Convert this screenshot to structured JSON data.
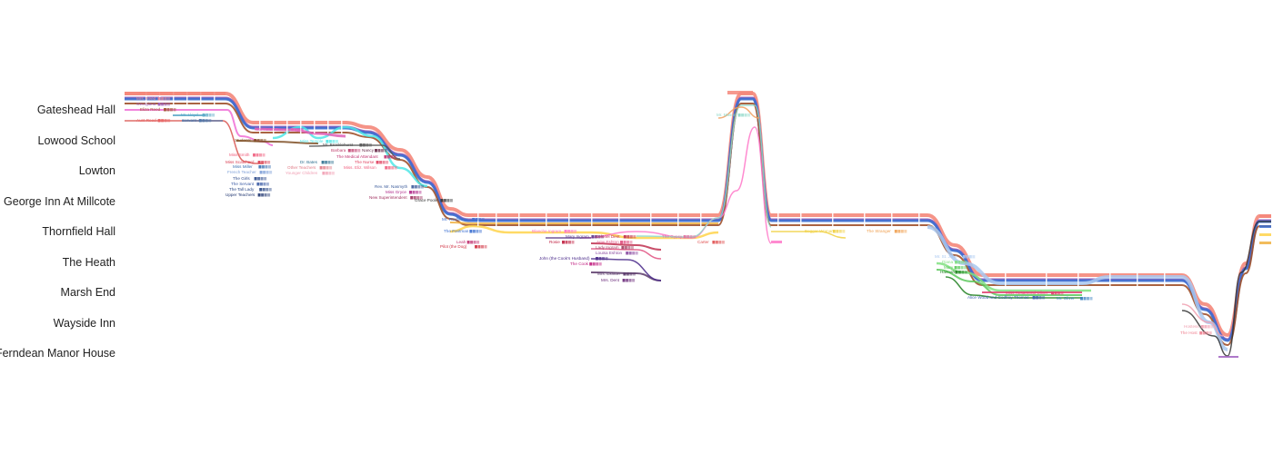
{
  "chart_data": {
    "type": "storyline",
    "locations": [
      "Gateshead Hall",
      "Lowood School",
      "Lowton",
      "George Inn At Millcote",
      "Thornfield Hall",
      "The Heath",
      "Marsh End",
      "Wayside Inn",
      "Ferndean Manor House"
    ],
    "characters": [
      {
        "name": "Jane Eyre",
        "color": "#f4877a"
      },
      {
        "name": "Mrs. Reed",
        "color": "#e8879c"
      },
      {
        "name": "Georgiana Reed",
        "color": "#9b59b6"
      },
      {
        "name": "Eliza Reed",
        "color": "#a0522d"
      },
      {
        "name": "John Reed",
        "color": "#f06fd6"
      },
      {
        "name": "Bessie Lee",
        "color": "#d9534f"
      },
      {
        "name": "Mr. Lloyd",
        "color": "#5aa9c8"
      },
      {
        "name": "Servant",
        "color": "#4a74a8"
      },
      {
        "name": "Abbot",
        "color": "#7a93c9"
      },
      {
        "name": "Aunt Reed",
        "color": "#e85d5d"
      },
      {
        "name": "Helen Burns",
        "color": "#e060b8"
      },
      {
        "name": "Miss Temple",
        "color": "#4fe6e6"
      },
      {
        "name": "Mr. Brocklehurst",
        "color": "#555555"
      },
      {
        "name": "Students",
        "color": "#7f4f24"
      },
      {
        "name": "Miss Scatcherd",
        "color": "#d93b4f"
      },
      {
        "name": "Miss Miller",
        "color": "#3a6fb0"
      },
      {
        "name": "French Teacher",
        "color": "#7fa0d8"
      },
      {
        "name": "The Girls",
        "color": "#2c4a8a"
      },
      {
        "name": "The Servant",
        "color": "#3b5ba5"
      },
      {
        "name": "The Tall Lady",
        "color": "#284684"
      },
      {
        "name": "Upper Teachers",
        "color": "#1f3570"
      },
      {
        "name": "Dr. Bates",
        "color": "#2b6f8f"
      },
      {
        "name": "Other Teachers",
        "color": "#e07a86"
      },
      {
        "name": "Younger Children",
        "color": "#f1a0b4"
      },
      {
        "name": "Mrs. Harden",
        "color": "#4a2a6a"
      },
      {
        "name": "Barbara",
        "color": "#c0406f"
      },
      {
        "name": "Nancy",
        "color": "#6a2c4a"
      },
      {
        "name": "The Medical Attendant",
        "color": "#c0306f"
      },
      {
        "name": "The Nurse",
        "color": "#e0405f"
      },
      {
        "name": "Miss Smith",
        "color": "#f0607f"
      },
      {
        "name": "Rev. Mr. Nasmyth",
        "color": "#3a5a9a"
      },
      {
        "name": "Miss Gryce",
        "color": "#b02a8a"
      },
      {
        "name": "New Superintendent",
        "color": "#a0305f"
      },
      {
        "name": "Grace Poole",
        "color": "#333333"
      },
      {
        "name": "Adele",
        "color": "#f0b040"
      },
      {
        "name": "Mr. Rochester",
        "color": "#3b6fd0"
      },
      {
        "name": "Mrs. Fairfax",
        "color": "#ffd44a"
      },
      {
        "name": "Leah",
        "color": "#c0306f"
      },
      {
        "name": "Pilot (the Dog)",
        "color": "#d03040"
      },
      {
        "name": "Blanche Ingram",
        "color": "#ff77c8"
      },
      {
        "name": "Mary Ingram",
        "color": "#5a3a8a"
      },
      {
        "name": "Colonel Dent",
        "color": "#c03050"
      },
      {
        "name": "Amy Eshton",
        "color": "#e05080"
      },
      {
        "name": "Lady Ingram",
        "color": "#a04060"
      },
      {
        "name": "Louisa Eshton",
        "color": "#8a4aa0"
      },
      {
        "name": "Rosie",
        "color": "#c02040"
      },
      {
        "name": "John (the Cook's Husband)",
        "color": "#4a2a8a"
      },
      {
        "name": "The Cook",
        "color": "#c02080"
      },
      {
        "name": "Mrs. Eshton",
        "color": "#5a3a6a"
      },
      {
        "name": "Mrs. Dent",
        "color": "#6a2a7a"
      },
      {
        "name": "The Gypsy",
        "color": "#e070a0"
      },
      {
        "name": "Mr. Mason",
        "color": "#8fd8c8"
      },
      {
        "name": "Carter",
        "color": "#e05050"
      },
      {
        "name": "Bessie",
        "color": "#c8a0d8"
      },
      {
        "name": "Robert Leaven",
        "color": "#a0c8e0"
      },
      {
        "name": "Mr. Briggs",
        "color": "#ffcc60"
      },
      {
        "name": "Clergyman",
        "color": "#f0a060"
      },
      {
        "name": "Beggar Woman",
        "color": "#f0d040"
      },
      {
        "name": "The Stranger",
        "color": "#f0a050"
      },
      {
        "name": "St. John Rivers",
        "color": "#a8c8f0"
      },
      {
        "name": "Diana Rivers",
        "color": "#80e080"
      },
      {
        "name": "Mary Rivers",
        "color": "#5ac85a"
      },
      {
        "name": "Hannah",
        "color": "#208020"
      },
      {
        "name": "Miss Rosamond Oliver",
        "color": "#e04070"
      },
      {
        "name": "Olivia",
        "color": "#a060c0"
      },
      {
        "name": "Mr. Oliver",
        "color": "#3a80c0"
      },
      {
        "name": "Alice Wood",
        "color": "#3a5ab0"
      },
      {
        "name": "Hostess",
        "color": "#f0a0b0"
      },
      {
        "name": "The Host",
        "color": "#f08090"
      },
      {
        "name": "The Servant at Ferndean",
        "color": "#333333"
      }
    ],
    "labels": {
      "gateshead": [
        "Jane Eyre",
        "Mrs. Reed",
        "Georgiana",
        "Eliza Reed",
        "John Reed",
        "Bessie Lee",
        "Mr. Lloyd",
        "Servant",
        "Abbot",
        "Aunt Reed"
      ],
      "lowood": [
        "Mr. Helen Burns",
        "Students",
        "Miss Temple",
        "Mr. Brocklehurst",
        "Miss Smith",
        "Dr. Bates",
        "Miss Scatcherd",
        "Miss Miller",
        "French Teacher",
        "The Girls",
        "The Servant",
        "The Tall Lady",
        "Upper Teachers",
        "Barbara",
        "Nancy",
        "The Medical Attendant",
        "The Nurse",
        "Miss. Eliz. Wilson",
        "Rev. Mr. Nasmyth",
        "Miss Gryce",
        "New Superintendent",
        "Grace Poole",
        "Other Teachers",
        "Younger Children",
        "Mrs. Harden"
      ],
      "thornfield": [
        "Mr. Rochester",
        "The Footman",
        "Leah",
        "Pilot (the Dog)",
        "Blanche Ingram",
        "Mary Ingram",
        "Colonel Dent",
        "Amy Eshton",
        "Lady Ingram",
        "Louisa Eshton",
        "Rosie",
        "John (the Cook's Husband)",
        "The Cook",
        "Mrs. Eshton",
        "Mrs. Dent",
        "The Gypsy",
        "Carter",
        "Mr. Mason"
      ],
      "heath": [
        "Beggar Woman",
        "The Stranger",
        "Mr. St. John",
        "Diana",
        "Mary",
        "Hannah",
        "Miss Rosamond Oliver",
        "Mr. Oliver",
        "Alice Wood and Godfrey Thomas",
        "Hostess",
        "The Host"
      ]
    },
    "xlim": [
      0,
      100
    ]
  }
}
